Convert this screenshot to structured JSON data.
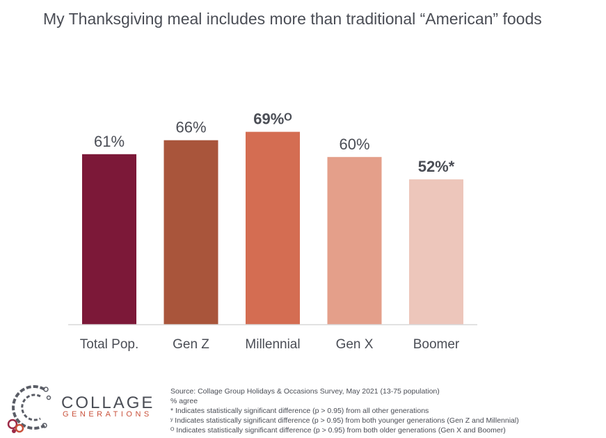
{
  "chart_data": {
    "type": "bar",
    "title": "My Thanksgiving meal includes more than traditional “American” foods",
    "categories": [
      "Total Pop.",
      "Gen Z",
      "Millennial",
      "Gen X",
      "Boomer"
    ],
    "values": [
      61,
      66,
      69,
      60,
      52
    ],
    "value_labels": [
      "61%",
      "66%",
      "69%ᴼ",
      "60%",
      "52%*"
    ],
    "bold_labels": [
      false,
      false,
      true,
      false,
      true
    ],
    "colors": [
      "#7c1838",
      "#a9553b",
      "#d46d52",
      "#e49f8a",
      "#edc6bb"
    ],
    "ylim": [
      0,
      100
    ],
    "grid": false,
    "legend": "none"
  },
  "logo": {
    "word": "COLLAGE",
    "sub": "GENERATIONS"
  },
  "notes": {
    "source": "Source: Collage Group Holidays & Occasions Survey, May 2021 (13-75 population)",
    "measure": "% agree",
    "note_star": "* Indicates statistically significant difference (p > 0.95) from all other generations",
    "note_y": "ʸ Indicates statistically significant difference (p > 0.95) from both younger generations (Gen Z and Millennial)",
    "note_o": "ᴼ Indicates statistically significant difference (p > 0.95) from both older generations (Gen X and Boomer)"
  }
}
